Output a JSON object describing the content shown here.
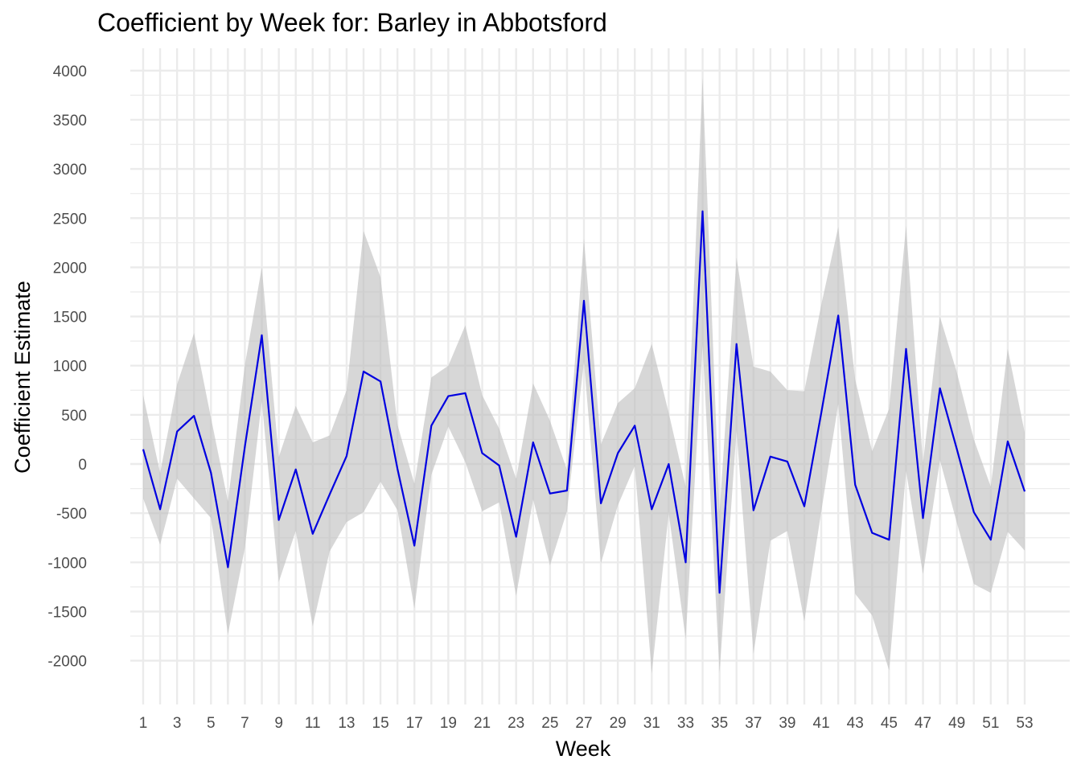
{
  "chart_data": {
    "type": "line",
    "title": "Coefficient by Week for: Barley in Abbotsford",
    "xlabel": "Week",
    "ylabel": "Coefficient Estimate",
    "x": [
      1,
      2,
      3,
      4,
      5,
      6,
      7,
      8,
      9,
      10,
      11,
      12,
      13,
      14,
      15,
      16,
      17,
      18,
      19,
      20,
      21,
      22,
      23,
      24,
      25,
      26,
      27,
      28,
      29,
      30,
      31,
      32,
      33,
      34,
      35,
      36,
      37,
      38,
      39,
      40,
      41,
      42,
      43,
      44,
      45,
      46,
      47,
      48,
      49,
      50,
      51,
      52,
      53
    ],
    "series": [
      {
        "values": [
          150,
          -460,
          330,
          490,
          -90,
          -1050,
          180,
          1310,
          -570,
          -55,
          -710,
          -310,
          80,
          940,
          840,
          -50,
          -830,
          390,
          690,
          720,
          110,
          -15,
          -740,
          220,
          -300,
          -270,
          1660,
          -400,
          110,
          390,
          -460,
          0,
          -1000,
          2570,
          -1310,
          1220,
          -470,
          75,
          25,
          -430,
          520,
          1510,
          -210,
          -700,
          -770,
          1170,
          -550,
          770,
          150,
          -490,
          -770,
          230,
          -280
        ]
      }
    ],
    "ribbon": {
      "lower": [
        -350,
        -820,
        -150,
        -350,
        -550,
        -1730,
        -850,
        640,
        -1200,
        -680,
        -1650,
        -890,
        -590,
        -490,
        -180,
        -470,
        -1470,
        -110,
        380,
        20,
        -480,
        -390,
        -1340,
        -360,
        -1030,
        -480,
        1040,
        -1010,
        -420,
        -20,
        -2130,
        -500,
        -1780,
        1210,
        -2120,
        340,
        -1930,
        -780,
        -680,
        -1600,
        -480,
        610,
        -1320,
        -1540,
        -2100,
        -70,
        -1120,
        40,
        -600,
        -1220,
        -1310,
        -690,
        -880
      ],
      "upper": [
        700,
        -90,
        810,
        1330,
        470,
        -380,
        1010,
        2000,
        70,
        590,
        220,
        290,
        750,
        2370,
        1900,
        400,
        -200,
        880,
        1000,
        1410,
        700,
        360,
        -150,
        820,
        440,
        -60,
        2290,
        200,
        620,
        770,
        1220,
        520,
        -230,
        3930,
        -490,
        2100,
        990,
        940,
        750,
        740,
        1620,
        2410,
        860,
        130,
        560,
        2420,
        10,
        1500,
        930,
        250,
        -230,
        1170,
        320
      ]
    },
    "xticks": [
      1,
      3,
      5,
      7,
      9,
      11,
      13,
      15,
      17,
      19,
      21,
      23,
      25,
      27,
      29,
      31,
      33,
      35,
      37,
      39,
      41,
      43,
      45,
      47,
      49,
      51,
      53
    ],
    "yticks": [
      -2000,
      -1500,
      -1000,
      -500,
      0,
      500,
      1000,
      1500,
      2000,
      2500,
      3000,
      3500,
      4000
    ],
    "xlim": [
      1,
      53
    ],
    "ylim": [
      -2300,
      4200
    ],
    "grid": true,
    "legend": "none",
    "colors": {
      "line": "#0000e0",
      "ribbon": "#bdbdbd",
      "grid": "#ebebeb"
    }
  }
}
